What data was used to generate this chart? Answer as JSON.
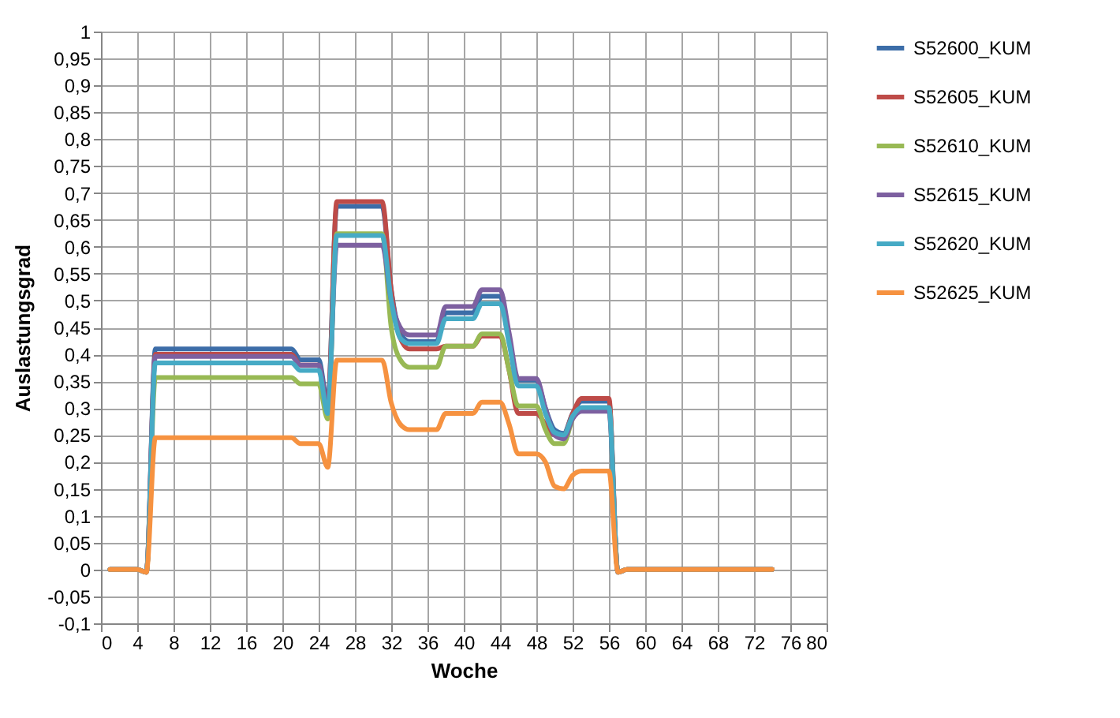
{
  "chart_data": {
    "type": "line",
    "xlabel": "Woche",
    "ylabel": "Auslastungsgrad",
    "x": [
      1,
      4,
      5,
      6,
      21,
      22,
      24,
      25,
      26,
      31,
      32,
      33,
      34,
      37,
      38,
      41,
      42,
      44,
      45,
      46,
      48,
      49,
      50,
      51,
      52,
      53,
      56,
      57,
      58,
      74
    ],
    "series": [
      {
        "name": "S52600_KUM",
        "color": "#3c6da8",
        "values": [
          0,
          0,
          -0.005,
          0.41,
          0.41,
          0.39,
          0.39,
          0.31,
          0.675,
          0.675,
          0.52,
          0.44,
          0.424,
          0.424,
          0.477,
          0.477,
          0.508,
          0.508,
          0.43,
          0.352,
          0.352,
          0.3,
          0.26,
          0.253,
          0.29,
          0.313,
          0.313,
          -0.005,
          0,
          0
        ]
      },
      {
        "name": "S52605_KUM",
        "color": "#be4b48",
        "values": [
          0,
          0,
          -0.005,
          0.4,
          0.4,
          0.38,
          0.38,
          0.3,
          0.684,
          0.684,
          0.52,
          0.43,
          0.41,
          0.41,
          0.415,
          0.415,
          0.434,
          0.434,
          0.37,
          0.29,
          0.29,
          0.27,
          0.25,
          0.25,
          0.29,
          0.318,
          0.318,
          -0.005,
          0,
          0
        ]
      },
      {
        "name": "S52610_KUM",
        "color": "#98b954",
        "values": [
          0,
          0,
          -0.005,
          0.357,
          0.357,
          0.345,
          0.345,
          0.28,
          0.624,
          0.624,
          0.45,
          0.39,
          0.376,
          0.376,
          0.415,
          0.415,
          0.438,
          0.438,
          0.37,
          0.304,
          0.304,
          0.26,
          0.234,
          0.234,
          0.28,
          0.3,
          0.3,
          -0.005,
          0,
          0
        ]
      },
      {
        "name": "S52615_KUM",
        "color": "#7d60a0",
        "values": [
          0,
          0,
          -0.005,
          0.396,
          0.396,
          0.38,
          0.38,
          0.3,
          0.603,
          0.603,
          0.5,
          0.45,
          0.436,
          0.436,
          0.489,
          0.489,
          0.52,
          0.52,
          0.44,
          0.355,
          0.355,
          0.3,
          0.25,
          0.243,
          0.28,
          0.294,
          0.294,
          -0.005,
          0,
          0
        ]
      },
      {
        "name": "S52620_KUM",
        "color": "#46aac5",
        "values": [
          0,
          0,
          -0.005,
          0.384,
          0.384,
          0.37,
          0.37,
          0.29,
          0.621,
          0.621,
          0.5,
          0.43,
          0.42,
          0.42,
          0.466,
          0.466,
          0.494,
          0.494,
          0.42,
          0.341,
          0.341,
          0.29,
          0.255,
          0.25,
          0.285,
          0.301,
          0.301,
          -0.005,
          0,
          0
        ]
      },
      {
        "name": "S52625_KUM",
        "color": "#f69240",
        "values": [
          0,
          0,
          -0.005,
          0.245,
          0.245,
          0.234,
          0.234,
          0.19,
          0.389,
          0.389,
          0.31,
          0.27,
          0.26,
          0.26,
          0.29,
          0.29,
          0.311,
          0.311,
          0.27,
          0.215,
          0.215,
          0.2,
          0.155,
          0.15,
          0.175,
          0.183,
          0.183,
          -0.005,
          0,
          0
        ]
      }
    ],
    "xlim": [
      0,
      80
    ],
    "xticks": [
      0,
      4,
      8,
      12,
      16,
      20,
      24,
      28,
      32,
      36,
      40,
      44,
      48,
      52,
      56,
      60,
      64,
      68,
      72,
      76,
      80
    ],
    "ylim": [
      -0.1,
      1
    ],
    "yticks": [
      {
        "value": -0.1,
        "label": "-0,1"
      },
      {
        "value": -0.05,
        "label": "-0,05"
      },
      0,
      {
        "value": 0.05,
        "label": "0,05"
      },
      {
        "value": 0.1,
        "label": "0,1"
      },
      {
        "value": 0.15,
        "label": "0,15"
      },
      {
        "value": 0.2,
        "label": "0,2"
      },
      {
        "value": 0.25,
        "label": "0,25"
      },
      {
        "value": 0.3,
        "label": "0,3"
      },
      {
        "value": 0.35,
        "label": "0,35"
      },
      {
        "value": 0.4,
        "label": "0,4"
      },
      {
        "value": 0.45,
        "label": "0,45"
      },
      {
        "value": 0.5,
        "label": "0,5"
      },
      {
        "value": 0.55,
        "label": "0,55"
      },
      {
        "value": 0.6,
        "label": "0,6"
      },
      {
        "value": 0.65,
        "label": "0,65"
      },
      {
        "value": 0.7,
        "label": "0,7"
      },
      {
        "value": 0.75,
        "label": "0,75"
      },
      {
        "value": 0.8,
        "label": "0,8"
      },
      {
        "value": 0.85,
        "label": "0,85"
      },
      {
        "value": 0.9,
        "label": "0,9"
      },
      {
        "value": 0.95,
        "label": "0,95"
      },
      1
    ],
    "grid": true,
    "legend": "right",
    "marker": "none",
    "line_style": "solid"
  }
}
